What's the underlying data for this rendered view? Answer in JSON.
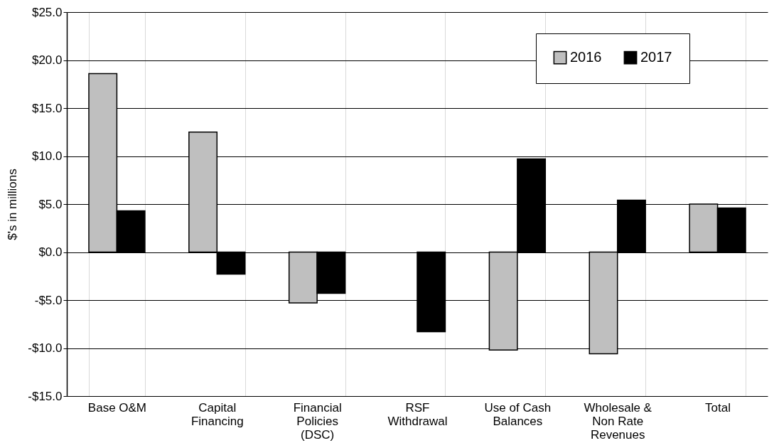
{
  "chart_data": {
    "type": "bar",
    "ylabel": "$'s in millions",
    "categories": [
      "Base O&M",
      "Capital Financing",
      "Financial Policies (DSC)",
      "RSF Withdrawal",
      "Use of Cash Balances",
      "Wholesale & Non Rate Revenues",
      "Total"
    ],
    "series": [
      {
        "name": "2016",
        "color": "#bfbfbf",
        "values": [
          18.6,
          12.5,
          -5.3,
          null,
          -10.2,
          -10.6,
          5.0
        ]
      },
      {
        "name": "2017",
        "color": "#000000",
        "values": [
          4.3,
          -2.3,
          -4.3,
          -8.3,
          9.7,
          5.4,
          4.6
        ]
      }
    ],
    "ylim": [
      -15,
      25
    ],
    "yticks": [
      {
        "value": -15,
        "label": "-$15.0"
      },
      {
        "value": -10,
        "label": "-$10.0"
      },
      {
        "value": -5,
        "label": "-$5.0"
      },
      {
        "value": 0,
        "label": "$0.0"
      },
      {
        "value": 5,
        "label": "$5.0"
      },
      {
        "value": 10,
        "label": "$10.0"
      },
      {
        "value": 15,
        "label": "$15.0"
      },
      {
        "value": 20,
        "label": "$20.0"
      },
      {
        "value": 25,
        "label": "$25.0"
      }
    ],
    "grid": true,
    "legend": "top right"
  }
}
